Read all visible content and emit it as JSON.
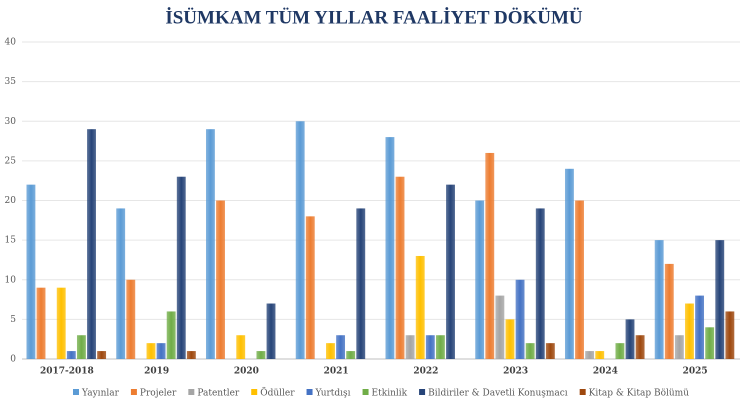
{
  "chart_data": {
    "type": "bar",
    "title": "İSÜMKAM TÜM YILLAR FAALİYET DÖKÜMÜ",
    "categories": [
      "2017-2018",
      "2019",
      "2020",
      "2021",
      "2022",
      "2023",
      "2024",
      "2025"
    ],
    "series": [
      {
        "name": "Yayınlar",
        "color": "#5b9bd5",
        "values": [
          22,
          19,
          29,
          30,
          28,
          20,
          24,
          15
        ]
      },
      {
        "name": "Projeler",
        "color": "#ed7d31",
        "values": [
          9,
          10,
          20,
          18,
          23,
          26,
          20,
          12
        ]
      },
      {
        "name": "Patentler",
        "color": "#a5a5a5",
        "values": [
          0,
          0,
          0,
          0,
          3,
          8,
          1,
          3
        ]
      },
      {
        "name": "Ödüller",
        "color": "#ffc000",
        "values": [
          9,
          2,
          3,
          2,
          13,
          5,
          1,
          7
        ]
      },
      {
        "name": "Yurtdışı",
        "color": "#4472c4",
        "values": [
          1,
          2,
          0,
          3,
          3,
          10,
          0,
          8
        ]
      },
      {
        "name": "Etkinlik",
        "color": "#70ad47",
        "values": [
          3,
          6,
          1,
          1,
          3,
          2,
          2,
          4
        ]
      },
      {
        "name": "Bildiriler & Davetli Konuşmacı",
        "color": "#264478",
        "values": [
          29,
          23,
          7,
          19,
          22,
          19,
          5,
          15
        ]
      },
      {
        "name": "Kitap & Kitap Bölümü",
        "color": "#9e480e",
        "values": [
          1,
          1,
          0,
          0,
          0,
          2,
          3,
          6
        ]
      }
    ],
    "ylim": [
      0,
      40
    ],
    "yticks": [
      0,
      5,
      10,
      15,
      20,
      25,
      30,
      35,
      40
    ],
    "grid": true,
    "legend": "bottom"
  }
}
